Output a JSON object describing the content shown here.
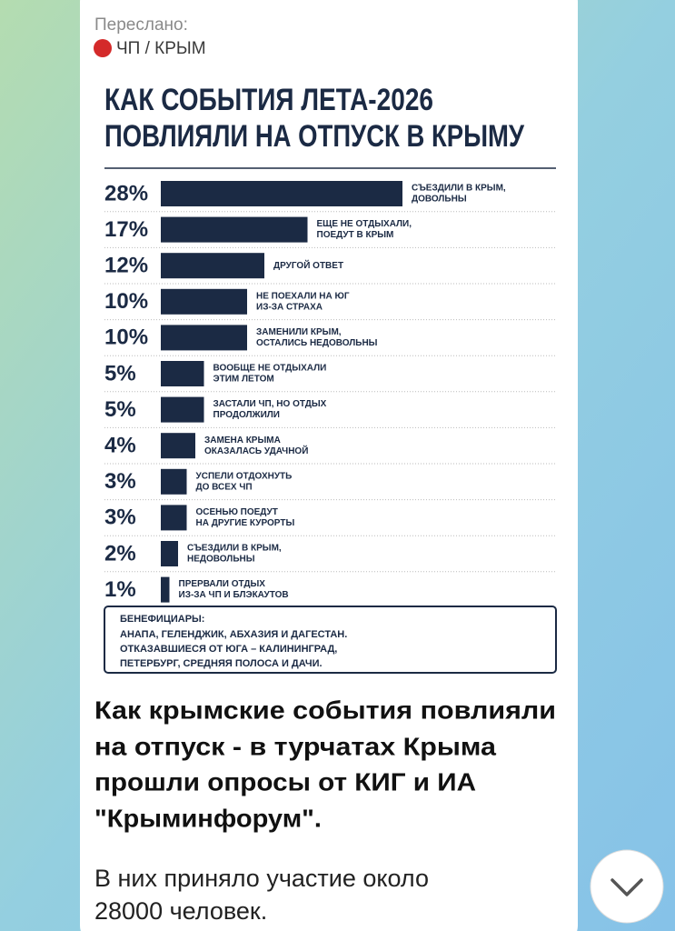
{
  "header": {
    "forwarded": "Переслано:",
    "channel": "ЧП / КРЫМ"
  },
  "chart_data": {
    "type": "bar",
    "orientation": "horizontal",
    "title": [
      "КАК СОБЫТИЯ ЛЕТА-2026",
      "ПОВЛИЯЛИ НА ОТПУСК В КРЫМУ"
    ],
    "categories": [
      [
        "СЪЕЗДИЛИ В КРЫМ,",
        "ДОВОЛЬНЫ"
      ],
      [
        "ЕЩЕ НЕ ОТДЫХАЛИ,",
        "ПОЕДУТ В КРЫМ"
      ],
      [
        "ДРУГОЙ ОТВЕТ"
      ],
      [
        "НЕ ПОЕХАЛИ НА ЮГ",
        "ИЗ-ЗА СТРАХА"
      ],
      [
        "ЗАМЕНИЛИ КРЫМ,",
        "ОСТАЛИСЬ НЕДОВОЛЬНЫ"
      ],
      [
        "ВООБЩЕ НЕ ОТДЫХАЛИ",
        "ЭТИМ ЛЕТОМ"
      ],
      [
        "ЗАСТАЛИ ЧП, НО ОТДЫХ",
        "ПРОДОЛЖИЛИ"
      ],
      [
        "ЗАМЕНА КРЫМА",
        "ОКАЗАЛАСЬ УДАЧНОЙ"
      ],
      [
        "УСПЕЛИ ОТДОХНУТЬ",
        "ДО ВСЕХ ЧП"
      ],
      [
        "ОСЕНЬЮ ПОЕДУТ",
        "НА ДРУГИЕ КУРОРТЫ"
      ],
      [
        "СЪЕЗДИЛИ В КРЫМ,",
        "НЕДОВОЛЬНЫ"
      ],
      [
        "ПРЕРВАЛИ ОТДЫХ",
        "ИЗ-ЗА ЧП И БЛЭКАУТОВ"
      ]
    ],
    "values": [
      28,
      17,
      12,
      10,
      10,
      5,
      5,
      4,
      3,
      3,
      2,
      1
    ],
    "value_labels": [
      "28%",
      "17%",
      "12%",
      "10%",
      "10%",
      "5%",
      "5%",
      "4%",
      "3%",
      "3%",
      "2%",
      "1%"
    ],
    "color": "#1b2a44",
    "note": {
      "label": "БЕНЕФИЦИАРЫ:",
      "lines": [
        "АНАПА, ГЕЛЕНДЖИК, АБХАЗИЯ И ДАГЕСТАН.",
        "ОТКАЗАВШИЕСЯ ОТ ЮГА – КАЛИНИНГРАД,",
        "ПЕТЕРБУРГ, СРЕДНЯЯ ПОЛОСА И ДАЧИ."
      ]
    }
  },
  "message": {
    "caption": [
      "Как крымские события повлияли",
      "на отпуск - в турчатах Крыма",
      "прошли опросы от КИГ и ИА",
      "\"Крыминфорум\"."
    ],
    "text": [
      "В них приняло участие около",
      "28000 человек."
    ]
  }
}
